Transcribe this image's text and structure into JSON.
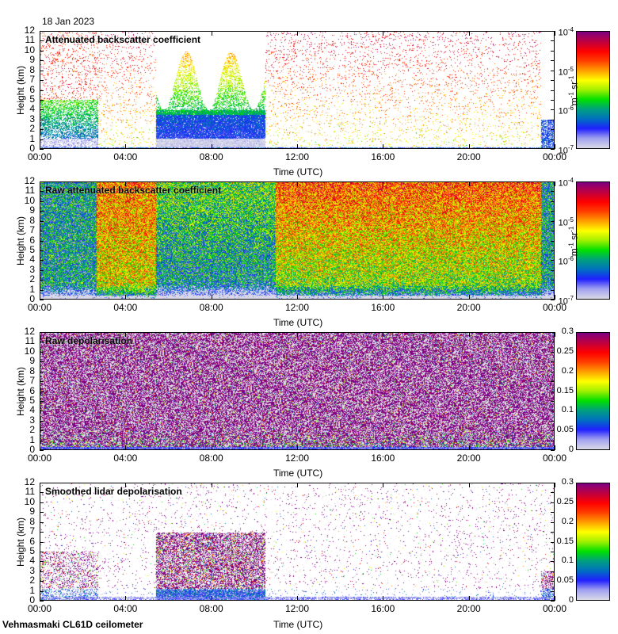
{
  "date": "18 Jan 2023",
  "footer": {
    "instrument": "Vehmasmaki CL61D ceilometer"
  },
  "colors": {
    "colormap": [
      "#d8d8e8",
      "#a0a0f0",
      "#2020ff",
      "#0070c0",
      "#00a080",
      "#00e000",
      "#a0f000",
      "#ffff00",
      "#ffa000",
      "#ff4000",
      "#ff0000",
      "#c00040",
      "#800080"
    ]
  },
  "chart_data": [
    {
      "type": "heatmap",
      "title": "Attenuated backscatter coefficient",
      "xlabel": "Time (UTC)",
      "ylabel": "Height (km)",
      "x_ticks": [
        "00:00",
        "04:00",
        "08:00",
        "12:00",
        "16:00",
        "20:00",
        "00:00"
      ],
      "y_ticks": [
        "0",
        "1",
        "2",
        "3",
        "4",
        "5",
        "6",
        "7",
        "8",
        "9",
        "10",
        "11",
        "12"
      ],
      "xlim": [
        0,
        24
      ],
      "ylim": [
        0,
        12
      ],
      "colorbar": {
        "label_base": "m",
        "label_exp1": "-1",
        "label_mid": " sr",
        "label_exp2": "-1",
        "scale": "log",
        "ticks": [
          {
            "base": "10",
            "exp": "-4"
          },
          {
            "base": "10",
            "exp": "-5"
          },
          {
            "base": "10",
            "exp": "-6"
          },
          {
            "base": "10",
            "exp": "-7"
          }
        ],
        "range": [
          1e-07,
          0.0001
        ]
      },
      "pattern": "clouds"
    },
    {
      "type": "heatmap",
      "title": "Raw attenuated backscatter coefficient",
      "xlabel": "Time (UTC)",
      "ylabel": "Height (km)",
      "x_ticks": [
        "00:00",
        "04:00",
        "08:00",
        "12:00",
        "16:00",
        "20:00",
        "00:00"
      ],
      "y_ticks": [
        "0",
        "1",
        "2",
        "3",
        "4",
        "5",
        "6",
        "7",
        "8",
        "9",
        "10",
        "11",
        "12"
      ],
      "xlim": [
        0,
        24
      ],
      "ylim": [
        0,
        12
      ],
      "colorbar": {
        "label_base": "m",
        "label_exp1": "-1",
        "label_mid": " sr",
        "label_exp2": "-1",
        "scale": "log",
        "ticks": [
          {
            "base": "10",
            "exp": "-4"
          },
          {
            "base": "10",
            "exp": "-5"
          },
          {
            "base": "10",
            "exp": "-6"
          },
          {
            "base": "10",
            "exp": "-7"
          }
        ],
        "range": [
          1e-07,
          0.0001
        ]
      },
      "pattern": "raw"
    },
    {
      "type": "heatmap",
      "title": "Raw depolarisation",
      "xlabel": "Time (UTC)",
      "ylabel": "Height (km)",
      "x_ticks": [
        "00:00",
        "04:00",
        "08:00",
        "12:00",
        "16:00",
        "20:00",
        "00:00"
      ],
      "y_ticks": [
        "0",
        "1",
        "2",
        "3",
        "4",
        "5",
        "6",
        "7",
        "8",
        "9",
        "10",
        "11",
        "12"
      ],
      "xlim": [
        0,
        24
      ],
      "ylim": [
        0,
        12
      ],
      "colorbar": {
        "scale": "linear",
        "ticks": [
          "0.3",
          "0.25",
          "0.2",
          "0.15",
          "0.1",
          "0.05",
          "0"
        ],
        "range": [
          0,
          0.3
        ]
      },
      "pattern": "noise"
    },
    {
      "type": "heatmap",
      "title": "Smoothed lidar depolarisation",
      "xlabel": "Time (UTC)",
      "ylabel": "Height (km)",
      "x_ticks": [
        "00:00",
        "04:00",
        "08:00",
        "12:00",
        "16:00",
        "20:00",
        "00:00"
      ],
      "y_ticks": [
        "0",
        "1",
        "2",
        "3",
        "4",
        "5",
        "6",
        "7",
        "8",
        "9",
        "10",
        "11",
        "12"
      ],
      "xlim": [
        0,
        24
      ],
      "ylim": [
        0,
        12
      ],
      "colorbar": {
        "scale": "linear",
        "ticks": [
          "0.3",
          "0.25",
          "0.2",
          "0.15",
          "0.1",
          "0.05",
          "0"
        ],
        "range": [
          0,
          0.3
        ]
      },
      "pattern": "smoothdepol"
    }
  ]
}
